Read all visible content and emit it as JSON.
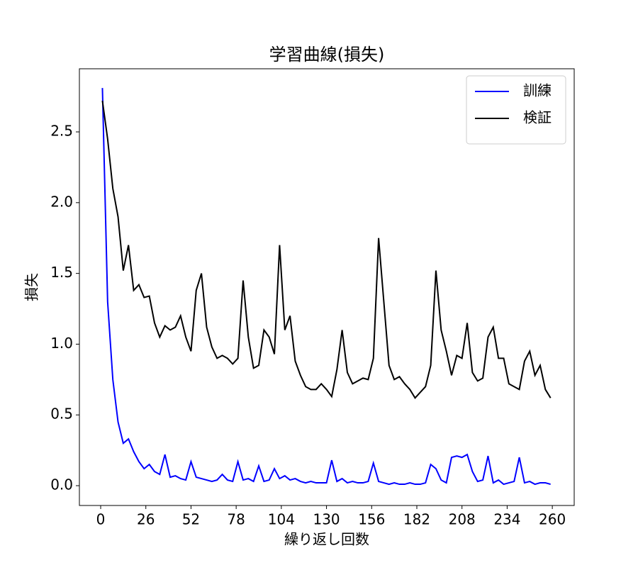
{
  "chart_data": {
    "type": "line",
    "title": "学習曲線(損失)",
    "xlabel": "繰り返し回数",
    "ylabel": "損失",
    "x": [
      1,
      4,
      7,
      10,
      13,
      16,
      19,
      22,
      25,
      28,
      31,
      34,
      37,
      40,
      43,
      46,
      49,
      52,
      55,
      58,
      61,
      64,
      67,
      70,
      73,
      76,
      79,
      82,
      85,
      88,
      91,
      94,
      97,
      100,
      103,
      106,
      109,
      112,
      115,
      118,
      121,
      124,
      127,
      130,
      133,
      136,
      139,
      142,
      145,
      148,
      151,
      154,
      157,
      160,
      163,
      166,
      169,
      172,
      175,
      178,
      181,
      184,
      187,
      190,
      193,
      196,
      199,
      202,
      205,
      208,
      211,
      214,
      217,
      220,
      223,
      226,
      229,
      232,
      235,
      238,
      241,
      244,
      247,
      250,
      253,
      256,
      259
    ],
    "series": [
      {
        "name": "訓練",
        "color": "#0000ff",
        "values": [
          2.81,
          1.3,
          0.75,
          0.45,
          0.3,
          0.33,
          0.24,
          0.17,
          0.12,
          0.15,
          0.1,
          0.08,
          0.22,
          0.06,
          0.07,
          0.05,
          0.04,
          0.17,
          0.06,
          0.05,
          0.04,
          0.03,
          0.04,
          0.08,
          0.04,
          0.03,
          0.17,
          0.04,
          0.05,
          0.03,
          0.14,
          0.03,
          0.04,
          0.12,
          0.05,
          0.07,
          0.04,
          0.05,
          0.03,
          0.02,
          0.03,
          0.02,
          0.02,
          0.02,
          0.18,
          0.03,
          0.05,
          0.02,
          0.03,
          0.02,
          0.02,
          0.03,
          0.16,
          0.03,
          0.02,
          0.01,
          0.02,
          0.01,
          0.01,
          0.02,
          0.01,
          0.01,
          0.02,
          0.15,
          0.12,
          0.04,
          0.02,
          0.2,
          0.21,
          0.2,
          0.22,
          0.1,
          0.03,
          0.04,
          0.21,
          0.02,
          0.04,
          0.01,
          0.02,
          0.03,
          0.2,
          0.02,
          0.03,
          0.01,
          0.02,
          0.02,
          0.01
        ]
      },
      {
        "name": "検証",
        "color": "#000000",
        "values": [
          2.72,
          2.45,
          2.1,
          1.9,
          1.52,
          1.7,
          1.38,
          1.42,
          1.33,
          1.34,
          1.15,
          1.05,
          1.13,
          1.1,
          1.12,
          1.2,
          1.05,
          0.95,
          1.38,
          1.5,
          1.12,
          0.98,
          0.9,
          0.92,
          0.9,
          0.86,
          0.9,
          1.45,
          1.05,
          0.83,
          0.85,
          1.1,
          1.05,
          0.93,
          1.7,
          1.1,
          1.2,
          0.88,
          0.78,
          0.7,
          0.68,
          0.68,
          0.72,
          0.68,
          0.63,
          0.82,
          1.1,
          0.8,
          0.72,
          0.74,
          0.76,
          0.75,
          0.9,
          1.75,
          1.3,
          0.85,
          0.75,
          0.77,
          0.72,
          0.68,
          0.62,
          0.66,
          0.7,
          0.85,
          1.52,
          1.1,
          0.95,
          0.78,
          0.92,
          0.9,
          1.15,
          0.8,
          0.74,
          0.76,
          1.05,
          1.12,
          0.9,
          0.9,
          0.72,
          0.7,
          0.68,
          0.88,
          0.95,
          0.78,
          0.85,
          0.68,
          0.62
        ]
      }
    ],
    "xlim": [
      -12.25,
      272.6
    ],
    "ylim": [
      -0.14,
      2.946
    ],
    "xticks": [
      0,
      26,
      52,
      78,
      104,
      130,
      156,
      182,
      208,
      234,
      260
    ],
    "yticks": [
      {
        "value": 0,
        "label": "0.0"
      },
      0.5,
      {
        "value": 1,
        "label": "1.0"
      },
      1.5,
      {
        "value": 2,
        "label": "2.0"
      },
      2.5
    ],
    "legend": "upper right"
  }
}
